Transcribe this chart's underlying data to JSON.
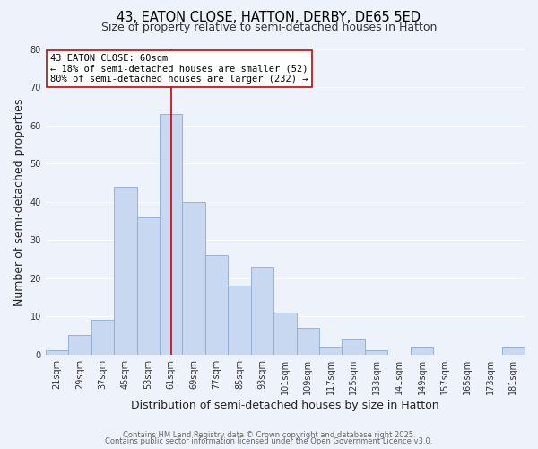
{
  "title_line1": "43, EATON CLOSE, HATTON, DERBY, DE65 5ED",
  "title_line2": "Size of property relative to semi-detached houses in Hatton",
  "xlabel": "Distribution of semi-detached houses by size in Hatton",
  "ylabel": "Number of semi-detached properties",
  "bar_labels": [
    "21sqm",
    "29sqm",
    "37sqm",
    "45sqm",
    "53sqm",
    "61sqm",
    "69sqm",
    "77sqm",
    "85sqm",
    "93sqm",
    "101sqm",
    "109sqm",
    "117sqm",
    "125sqm",
    "133sqm",
    "141sqm",
    "149sqm",
    "157sqm",
    "165sqm",
    "173sqm",
    "181sqm"
  ],
  "bar_values": [
    1,
    5,
    9,
    44,
    36,
    63,
    40,
    26,
    18,
    23,
    11,
    7,
    2,
    4,
    1,
    0,
    2,
    0,
    0,
    0,
    2
  ],
  "bar_color": "#c8d8f0",
  "bar_edge_color": "#8aaad4",
  "vline_x": 5,
  "vline_color": "#cc0000",
  "annotation_title": "43 EATON CLOSE: 60sqm",
  "annotation_line1": "← 18% of semi-detached houses are smaller (52)",
  "annotation_line2": "80% of semi-detached houses are larger (232) →",
  "annotation_box_color": "#ffffff",
  "annotation_box_edge": "#cc0000",
  "ylim": [
    0,
    80
  ],
  "yticks": [
    0,
    10,
    20,
    30,
    40,
    50,
    60,
    70,
    80
  ],
  "bg_color": "#eef2fb",
  "plot_bg_color": "#eef2fb",
  "grid_color": "#ffffff",
  "footer_line1": "Contains HM Land Registry data © Crown copyright and database right 2025.",
  "footer_line2": "Contains public sector information licensed under the Open Government Licence v3.0.",
  "title_fontsize": 10.5,
  "subtitle_fontsize": 9,
  "axis_label_fontsize": 9,
  "tick_fontsize": 7,
  "annotation_fontsize": 7.5,
  "footer_fontsize": 6
}
